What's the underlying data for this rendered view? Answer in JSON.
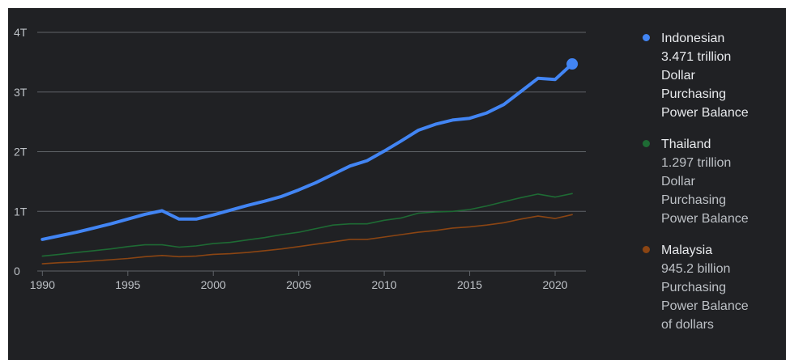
{
  "colors": {
    "background": "#202124",
    "grid": "#5f6368",
    "axis_text": "#bdc1c6",
    "indonesia": "#4285f4",
    "thailand": "#1e6b34",
    "malaysia": "#8b4513"
  },
  "chart_data": {
    "type": "line",
    "x": [
      1990,
      1991,
      1992,
      1993,
      1994,
      1995,
      1996,
      1997,
      1998,
      1999,
      2000,
      2001,
      2002,
      2003,
      2004,
      2005,
      2006,
      2007,
      2008,
      2009,
      2010,
      2011,
      2012,
      2013,
      2014,
      2015,
      2016,
      2017,
      2018,
      2019,
      2020,
      2021
    ],
    "xticks": [
      1990,
      1995,
      2000,
      2005,
      2010,
      2015,
      2020
    ],
    "yticks": [
      0,
      1,
      2,
      3,
      4
    ],
    "ytick_labels": [
      "0",
      "1T",
      "2T",
      "3T",
      "4T"
    ],
    "ylim": [
      0,
      4
    ],
    "xlim": [
      1989.7,
      2021.8
    ],
    "grid": true,
    "legend_position": "right",
    "series": [
      {
        "name": "Indonesian",
        "key": "indonesia",
        "values": [
          0.53,
          0.59,
          0.65,
          0.72,
          0.79,
          0.87,
          0.95,
          1.01,
          0.87,
          0.87,
          0.94,
          1.02,
          1.1,
          1.17,
          1.25,
          1.36,
          1.48,
          1.62,
          1.76,
          1.85,
          2.01,
          2.18,
          2.36,
          2.46,
          2.53,
          2.56,
          2.65,
          2.79,
          3.01,
          3.23,
          3.21,
          3.471
        ]
      },
      {
        "name": "Thailand",
        "key": "thailand",
        "values": [
          0.25,
          0.28,
          0.31,
          0.34,
          0.37,
          0.41,
          0.44,
          0.44,
          0.4,
          0.42,
          0.46,
          0.48,
          0.52,
          0.56,
          0.61,
          0.65,
          0.71,
          0.77,
          0.79,
          0.79,
          0.85,
          0.89,
          0.97,
          0.99,
          1.0,
          1.03,
          1.09,
          1.16,
          1.23,
          1.29,
          1.24,
          1.297
        ]
      },
      {
        "name": "Malaysia",
        "key": "malaysia",
        "values": [
          0.12,
          0.14,
          0.15,
          0.17,
          0.19,
          0.21,
          0.24,
          0.26,
          0.24,
          0.25,
          0.28,
          0.29,
          0.31,
          0.34,
          0.37,
          0.41,
          0.45,
          0.49,
          0.53,
          0.53,
          0.57,
          0.61,
          0.65,
          0.68,
          0.72,
          0.74,
          0.77,
          0.81,
          0.87,
          0.92,
          0.88,
          0.9452
        ]
      }
    ]
  },
  "legend": [
    {
      "key": "indonesia",
      "lines": [
        "Indonesian",
        "3.471 trillion",
        "Dollar",
        "Purchasing",
        "Power Balance"
      ]
    },
    {
      "key": "thailand",
      "lines": [
        "Thailand",
        "1.297 trillion",
        "Dollar",
        "Purchasing",
        "Power Balance"
      ]
    },
    {
      "key": "malaysia",
      "lines": [
        "Malaysia",
        "945.2 billion",
        "Purchasing",
        "Power Balance",
        "of dollars"
      ]
    }
  ]
}
